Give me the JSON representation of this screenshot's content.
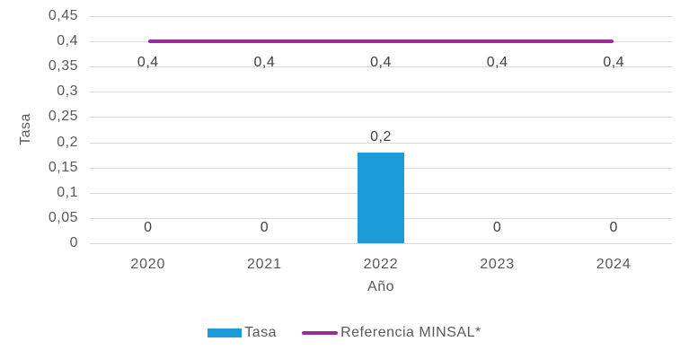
{
  "chart_data": {
    "type": "composite",
    "title": "",
    "xlabel": "Año",
    "ylabel": "Tasa",
    "categories": [
      "2020",
      "2021",
      "2022",
      "2023",
      "2024"
    ],
    "ylim": [
      0,
      0.45
    ],
    "grid": true,
    "ytick_labels": [
      "0,45",
      "0,4",
      "0,35",
      "0,3",
      "0,25",
      "0,2",
      "0,15",
      "0,1",
      "0,05",
      "0"
    ],
    "ytick_values": [
      0.45,
      0.4,
      0.35,
      0.3,
      0.25,
      0.2,
      0.15,
      0.1,
      0.05,
      0
    ],
    "series": [
      {
        "name": "Tasa",
        "type": "bar",
        "color": "#1b9cd9",
        "values": [
          0,
          0,
          0.18,
          0,
          0
        ],
        "labels": [
          "0",
          "0",
          "0,2",
          "0",
          "0"
        ]
      },
      {
        "name": "Referencia MINSAL*",
        "type": "line",
        "color": "#9c2d96",
        "values": [
          0.4,
          0.4,
          0.4,
          0.4,
          0.4
        ],
        "labels": [
          "0,4",
          "0,4",
          "0,4",
          "0,4",
          "0,4"
        ]
      }
    ],
    "legend_position": "bottom"
  },
  "legend": {
    "items": [
      {
        "label": "Tasa",
        "color": "#1b9cd9",
        "marker": "bar"
      },
      {
        "label": "Referencia MINSAL*",
        "color": "#9c2d96",
        "marker": "line"
      }
    ]
  },
  "colors": {
    "bar_blue": "#1b9cd9",
    "line_purple": "#9c2d96",
    "gridline": "#d9d9d9",
    "tick_text": "#595959",
    "data_label_text": "#404040",
    "background": "#ffffff"
  }
}
